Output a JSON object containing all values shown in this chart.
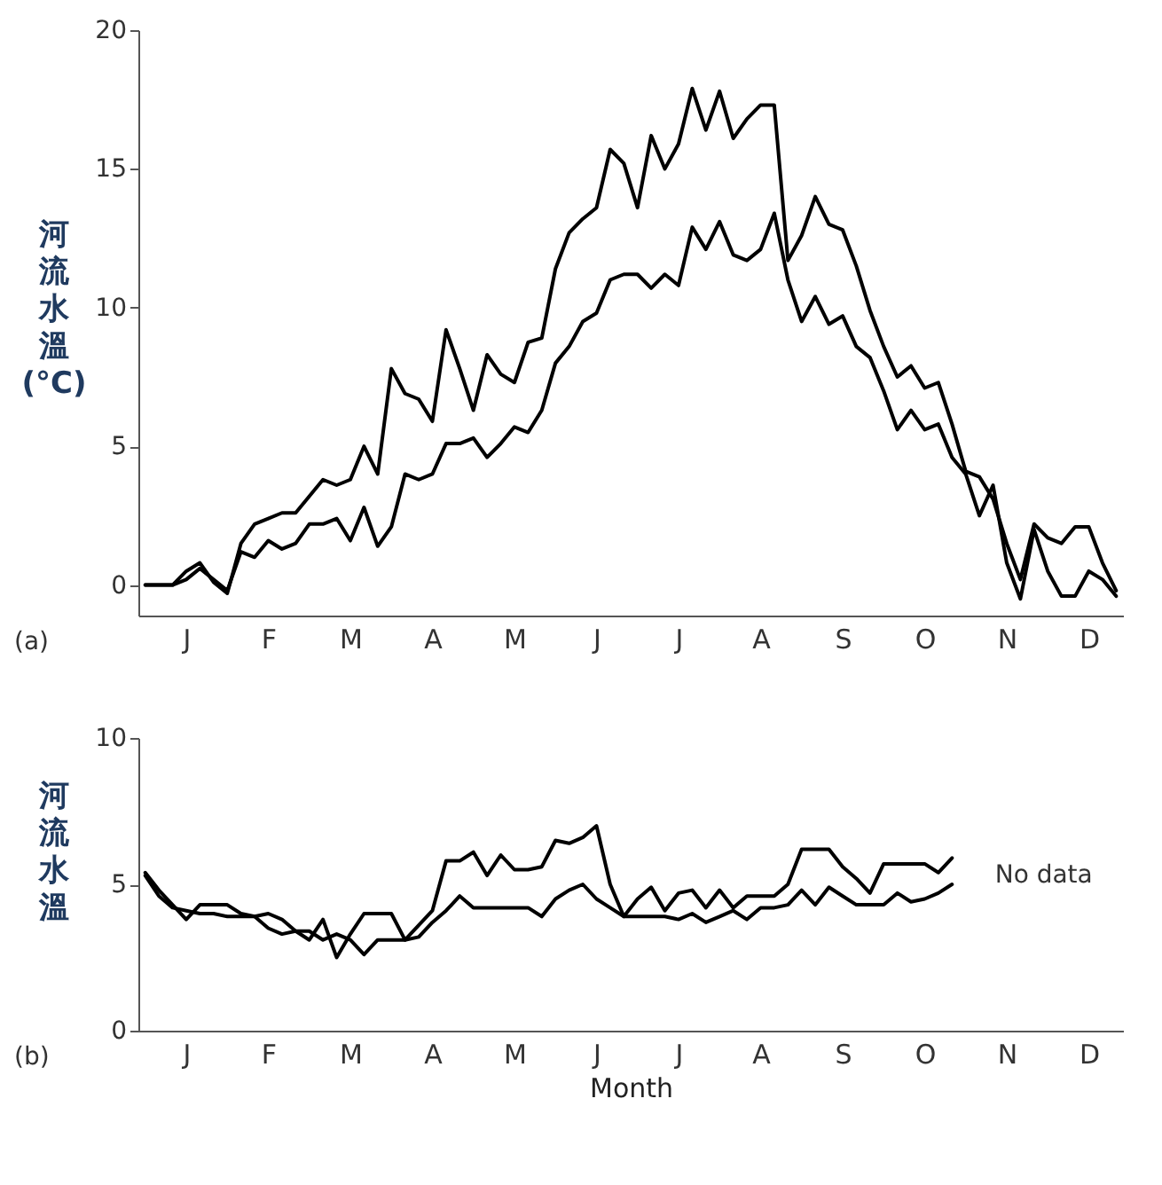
{
  "chart_data": [
    {
      "type": "line",
      "ylabel": "河流水溫 (°C)",
      "annotations": [
        "(a)"
      ],
      "categories": [
        null,
        null,
        null,
        "J",
        null,
        null,
        null,
        null,
        null,
        "F",
        null,
        null,
        null,
        null,
        null,
        "M",
        null,
        null,
        null,
        null,
        null,
        "A",
        null,
        null,
        null,
        null,
        null,
        "M",
        null,
        null,
        null,
        null,
        null,
        "J",
        null,
        null,
        null,
        null,
        null,
        "J",
        null,
        null,
        null,
        null,
        null,
        "A",
        null,
        null,
        null,
        null,
        null,
        "S",
        null,
        null,
        null,
        null,
        null,
        "O",
        null,
        null,
        null,
        null,
        null,
        "N",
        null,
        null,
        null,
        null,
        null,
        "D",
        null,
        null
      ],
      "ylim": [
        -1.1,
        20
      ],
      "yticks": [
        0,
        5,
        10,
        15,
        20
      ],
      "marker": "none",
      "line_style": "solid",
      "series": [
        {
          "color": "#000000",
          "values": [
            0,
            0,
            0,
            0.5,
            0.8,
            0.1,
            -0.3,
            1.5,
            2.2,
            2.4,
            2.6,
            2.6,
            3.2,
            3.8,
            3.6,
            3.8,
            5.0,
            4.0,
            7.8,
            6.9,
            6.7,
            5.9,
            9.2,
            7.8,
            6.3,
            8.3,
            7.6,
            7.3,
            8.75,
            8.9,
            11.4,
            12.7,
            13.2,
            13.6,
            15.7,
            15.2,
            13.6,
            16.2,
            15.0,
            15.9,
            17.9,
            16.4,
            17.8,
            16.1,
            16.8,
            17.3,
            17.3,
            11.7,
            12.6,
            14.0,
            13.0,
            12.8,
            11.5,
            9.9,
            8.6,
            7.5,
            7.9,
            7.1,
            7.3,
            5.8,
            4.1,
            3.9,
            3.1,
            1.5,
            0.2,
            2.2,
            1.7,
            1.5,
            2.1,
            2.1,
            0.8,
            -0.2
          ]
        },
        {
          "color": "#000000",
          "values": [
            0,
            0,
            0,
            0.2,
            0.6,
            0.2,
            -0.2,
            1.2,
            1.0,
            1.6,
            1.3,
            1.5,
            2.2,
            2.2,
            2.4,
            1.6,
            2.8,
            1.4,
            2.1,
            4.0,
            3.8,
            4.0,
            5.1,
            5.1,
            5.3,
            4.6,
            5.1,
            5.7,
            5.5,
            6.3,
            8.0,
            8.6,
            9.5,
            9.8,
            11.0,
            11.2,
            11.2,
            10.7,
            11.2,
            10.8,
            12.9,
            12.1,
            13.1,
            11.9,
            11.7,
            12.1,
            13.4,
            11.0,
            9.5,
            10.4,
            9.4,
            9.7,
            8.6,
            8.2,
            7.0,
            5.6,
            6.3,
            5.6,
            5.8,
            4.6,
            4.0,
            2.5,
            3.6,
            0.8,
            -0.5,
            2.0,
            0.5,
            -0.4,
            -0.4,
            0.5,
            0.2,
            -0.4
          ]
        }
      ]
    },
    {
      "type": "line",
      "ylabel": "河流水溫",
      "xlabel": "Month",
      "annotations": [
        "(b)",
        "No data"
      ],
      "categories": [
        null,
        null,
        null,
        "J",
        null,
        null,
        null,
        null,
        null,
        "F",
        null,
        null,
        null,
        null,
        null,
        "M",
        null,
        null,
        null,
        null,
        null,
        "A",
        null,
        null,
        null,
        null,
        null,
        "M",
        null,
        null,
        null,
        null,
        null,
        "J",
        null,
        null,
        null,
        null,
        null,
        "J",
        null,
        null,
        null,
        null,
        null,
        "A",
        null,
        null,
        null,
        null,
        null,
        "S",
        null,
        null,
        null,
        null,
        null,
        "O",
        null,
        null,
        null,
        null,
        null,
        "N",
        null,
        null,
        null,
        null,
        null,
        "D",
        null,
        null
      ],
      "ylim": [
        0,
        10
      ],
      "yticks": [
        0,
        5,
        10
      ],
      "marker": "none",
      "line_style": "solid",
      "series": [
        {
          "color": "#000000",
          "values": [
            5.4,
            4.8,
            4.3,
            3.8,
            4.3,
            4.3,
            4.3,
            4.0,
            3.9,
            4.0,
            3.8,
            3.4,
            3.1,
            3.8,
            2.5,
            3.3,
            4.0,
            4.0,
            4.0,
            3.1,
            3.6,
            4.1,
            5.8,
            5.8,
            6.1,
            5.3,
            6.0,
            5.5,
            5.5,
            5.6,
            6.5,
            6.4,
            6.6,
            7.0,
            5.0,
            3.9,
            4.5,
            4.9,
            4.1,
            4.7,
            4.8,
            4.2,
            4.8,
            4.2,
            4.6,
            4.6,
            4.6,
            5.0,
            6.2,
            6.2,
            6.2,
            5.6,
            5.2,
            4.7,
            5.7,
            5.7,
            5.7,
            5.7,
            5.4,
            5.9,
            null,
            null,
            null,
            null,
            null,
            null,
            null,
            null,
            null,
            null,
            null,
            null
          ]
        },
        {
          "color": "#000000",
          "values": [
            5.3,
            4.6,
            4.2,
            4.1,
            4.0,
            4.0,
            3.9,
            3.9,
            3.9,
            3.5,
            3.3,
            3.4,
            3.4,
            3.1,
            3.3,
            3.1,
            2.6,
            3.1,
            3.1,
            3.1,
            3.2,
            3.7,
            4.1,
            4.6,
            4.2,
            4.2,
            4.2,
            4.2,
            4.2,
            3.9,
            4.5,
            4.8,
            5.0,
            4.5,
            4.2,
            3.9,
            3.9,
            3.9,
            3.9,
            3.8,
            4.0,
            3.7,
            3.9,
            4.1,
            3.8,
            4.2,
            4.2,
            4.3,
            4.8,
            4.3,
            4.9,
            4.6,
            4.3,
            4.3,
            4.3,
            4.7,
            4.4,
            4.5,
            4.7,
            5.0,
            null,
            null,
            null,
            null,
            null,
            null,
            null,
            null,
            null,
            null,
            null,
            null
          ]
        }
      ]
    }
  ]
}
